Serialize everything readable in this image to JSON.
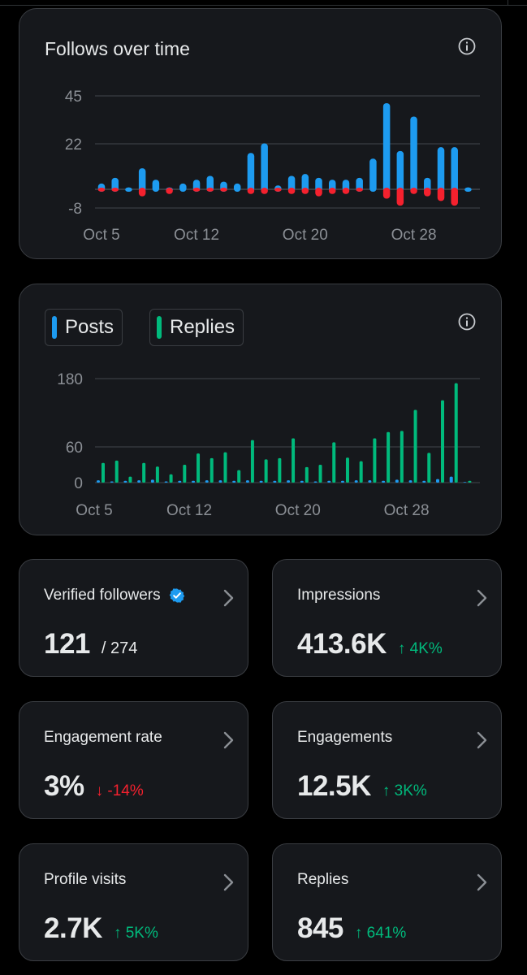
{
  "colors": {
    "blue": "#1d9bf0",
    "red": "#f4212e",
    "green": "#00ba7c",
    "grid": "#3a3d42",
    "tick": "#8b8f95"
  },
  "follows_card": {
    "title": "Follows over time",
    "icon": "info-icon"
  },
  "posts_card": {
    "icon": "info-icon",
    "legend": [
      {
        "label": "Posts",
        "color": "#1d9bf0"
      },
      {
        "label": "Replies",
        "color": "#00ba7c"
      }
    ]
  },
  "chart_data": [
    {
      "type": "bar",
      "title": "Follows over time",
      "y_ticks": [
        45,
        22,
        -8
      ],
      "x_tick_labels": [
        "Oct 5",
        "Oct 12",
        "Oct 20",
        "Oct 28"
      ],
      "x_tick_index": [
        5,
        12,
        20,
        28
      ],
      "grid": true,
      "series": [
        {
          "name": "",
          "color": "#1d9bf0",
          "values": [
            3,
            6,
            1,
            11,
            5,
            1,
            3,
            5,
            7,
            4,
            3,
            19,
            24,
            2,
            7,
            8,
            6,
            5,
            5,
            6,
            16,
            45,
            20,
            38,
            6,
            22,
            22,
            1
          ]
        },
        {
          "name": "",
          "color": "#f4212e",
          "values": [
            -1,
            -1,
            0,
            -3,
            0,
            -2,
            0,
            -1,
            -1,
            -1,
            0,
            -2,
            -2,
            -1,
            -2,
            -2,
            -3,
            -2,
            -2,
            -1,
            0,
            -4,
            -7,
            -2,
            -3,
            -5,
            -7,
            0
          ]
        }
      ],
      "ylim": [
        -8,
        45
      ]
    },
    {
      "type": "bar",
      "y_ticks": [
        180,
        60,
        0
      ],
      "x_tick_labels": [
        "Oct 5",
        "Oct 12",
        "Oct 20",
        "Oct 28"
      ],
      "x_tick_index": [
        5,
        12,
        20,
        28
      ],
      "grid": true,
      "series": [
        {
          "name": "Posts",
          "color": "#1d9bf0",
          "values": [
            4,
            2,
            3,
            4,
            5,
            2,
            3,
            3,
            4,
            4,
            3,
            4,
            3,
            3,
            4,
            3,
            2,
            3,
            3,
            4,
            4,
            3,
            5,
            4,
            3,
            6,
            10,
            1
          ]
        },
        {
          "name": "Replies",
          "color": "#00ba7c",
          "values": [
            33,
            37,
            10,
            33,
            27,
            14,
            30,
            49,
            41,
            51,
            21,
            72,
            39,
            41,
            75,
            26,
            30,
            68,
            42,
            36,
            75,
            86,
            88,
            125,
            50,
            142,
            172,
            3
          ]
        }
      ],
      "ylim": [
        0,
        180
      ]
    }
  ],
  "stats": [
    {
      "title": "Verified followers",
      "value": "121",
      "sub": "/ 274",
      "delta": "",
      "badge": true
    },
    {
      "title": "Impressions",
      "value": "413.6K",
      "sub": "",
      "delta": "↑ 4K%",
      "dir": "up"
    },
    {
      "title": "Engagement rate",
      "value": "3%",
      "sub": "",
      "delta": "↓ -14%",
      "dir": "down"
    },
    {
      "title": "Engagements",
      "value": "12.5K",
      "sub": "",
      "delta": "↑ 3K%",
      "dir": "up"
    },
    {
      "title": "Profile visits",
      "value": "2.7K",
      "sub": "",
      "delta": "↑ 5K%",
      "dir": "up"
    },
    {
      "title": "Replies",
      "value": "845",
      "sub": "",
      "delta": "↑ 641%",
      "dir": "up"
    }
  ],
  "icons": {
    "chevron": "chevron-right-icon",
    "verified": "verified-badge-icon"
  }
}
